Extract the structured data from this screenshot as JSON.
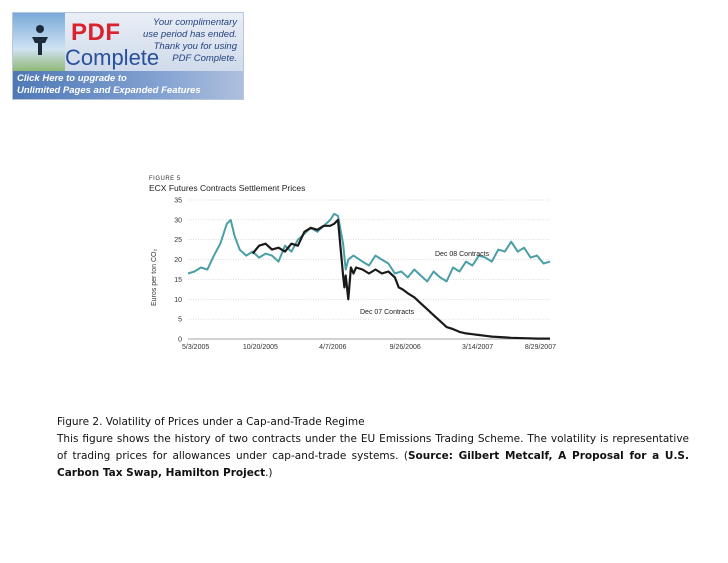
{
  "banner": {
    "brand_pdf": "PDF",
    "brand_complete": "Complete",
    "note_lines": [
      "Your complimentary",
      "use period has ended.",
      "Thank you for using",
      "PDF Complete."
    ],
    "upgrade_lines": [
      "Click Here to upgrade to",
      "Unlimited Pages and Expanded Features"
    ]
  },
  "figure": {
    "label": "FIGURE 5",
    "title": "ECX Futures Contracts Settlement Prices",
    "ylabel": "Euros per ton CO₂"
  },
  "chart_data": {
    "type": "line",
    "title": "ECX Futures Contracts Settlement Prices",
    "xlabel": "",
    "ylabel": "Euros per ton CO₂",
    "ylim": [
      0,
      35
    ],
    "yticks": [
      0,
      5,
      10,
      15,
      20,
      25,
      30,
      35
    ],
    "x_tick_labels": [
      "5/3/2005",
      "10/20/2005",
      "4/7/2006",
      "9/26/2006",
      "3/14/2007",
      "8/29/2007"
    ],
    "x_range": [
      0,
      28
    ],
    "x_unit": "months since 5/3/2005",
    "series": [
      {
        "name": "Dec 08 Contracts",
        "color": "#4a9fa6",
        "x": [
          0,
          0.5,
          1,
          1.5,
          2,
          2.5,
          3,
          3.3,
          3.6,
          4,
          4.5,
          5,
          5.5,
          6,
          6.5,
          7,
          7.5,
          8,
          8.5,
          9,
          9.5,
          10,
          10.5,
          11,
          11.3,
          11.6,
          12,
          12.2,
          12.4,
          12.8,
          13.5,
          14,
          14.5,
          15,
          15.5,
          16,
          16.5,
          17,
          17.5,
          18,
          18.5,
          19,
          19.5,
          20,
          20.5,
          21,
          21.5,
          22,
          22.5,
          23,
          23.5,
          24,
          24.5,
          25,
          25.5,
          26,
          26.5,
          27,
          27.5,
          28
        ],
        "values": [
          16.5,
          17,
          18,
          17.5,
          21,
          24,
          29,
          30,
          26,
          22.5,
          21,
          22,
          20.5,
          21.5,
          21,
          19.5,
          23.5,
          22,
          25,
          26.5,
          28,
          27,
          28.5,
          30,
          31.5,
          31,
          24,
          17.5,
          20,
          21,
          19.5,
          18.5,
          21,
          20,
          19,
          16.5,
          17,
          15.5,
          17.5,
          16,
          14.5,
          17,
          15.5,
          14.5,
          18,
          17,
          19.5,
          18.5,
          21,
          20.5,
          19.5,
          22.5,
          22,
          24.5,
          22,
          23,
          20.5,
          21,
          19,
          19.5
        ]
      },
      {
        "name": "Dec 07 Contracts",
        "color": "#1a1a1a",
        "x": [
          5,
          5.5,
          6,
          6.5,
          7,
          7.5,
          8,
          8.5,
          9,
          9.5,
          10,
          10.5,
          11,
          11.3,
          11.6,
          12,
          12.1,
          12.2,
          12.4,
          12.6,
          12.8,
          13,
          13.5,
          14,
          14.5,
          15,
          15.5,
          16,
          16.3,
          16.6,
          17,
          17.5,
          18,
          18.5,
          19,
          19.5,
          20,
          20.5,
          21,
          21.5,
          22,
          22.5,
          23,
          23.5,
          24,
          25,
          26,
          27,
          28
        ],
        "values": [
          21.5,
          23.5,
          24,
          22.5,
          23,
          22,
          24,
          23.5,
          27,
          28,
          27.5,
          28.5,
          28.5,
          29,
          30,
          16,
          13,
          16,
          10,
          18,
          16.5,
          18,
          17.5,
          16.5,
          17.5,
          16.5,
          17,
          15.5,
          13,
          12.5,
          11.5,
          10.5,
          9,
          7.5,
          6,
          4.5,
          3,
          2.5,
          1.8,
          1.4,
          1.2,
          1.0,
          0.8,
          0.6,
          0.5,
          0.3,
          0.2,
          0.1,
          0.1
        ]
      }
    ],
    "annotations": [
      "Dec 08 Contracts",
      "Dec 07 Contracts"
    ],
    "grid": true,
    "legend": "inline annotations"
  },
  "caption": {
    "title": "Figure 2. Volatility of Prices under a Cap-and-Trade Regime",
    "body": "This figure shows the history of two contracts under the EU Emissions Trading Scheme. The volatility is representative of trading prices for allowances under cap-and-trade systems. (",
    "source_bold": "Source: Gilbert Metcalf, A Proposal for a U.S. Carbon Tax Swap, Hamilton Project",
    "closing": ".)"
  }
}
